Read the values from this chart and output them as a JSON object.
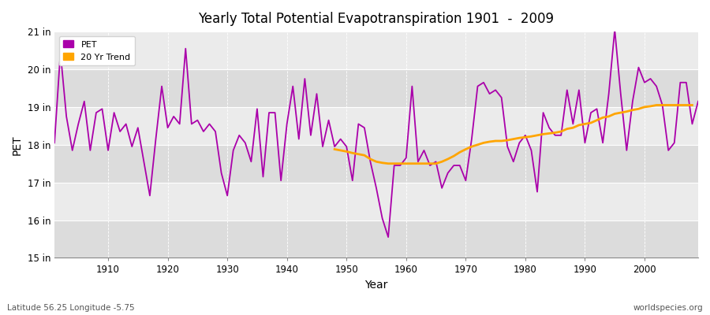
{
  "title": "Yearly Total Potential Evapotranspiration 1901  -  2009",
  "xlabel": "Year",
  "ylabel": "PET",
  "subtitle_left": "Latitude 56.25 Longitude -5.75",
  "subtitle_right": "worldspecies.org",
  "pet_color": "#AA00AA",
  "trend_color": "#FFA500",
  "bg_color": "#FFFFFF",
  "plot_bg_light": "#EBEBEB",
  "plot_bg_dark": "#DCDCDC",
  "ylim": [
    15,
    21
  ],
  "yticks": [
    15,
    16,
    17,
    18,
    19,
    20,
    21
  ],
  "ytick_labels": [
    "15 in",
    "16 in",
    "17 in",
    "18 in",
    "19 in",
    "20 in",
    "21 in"
  ],
  "years": [
    1901,
    1902,
    1903,
    1904,
    1905,
    1906,
    1907,
    1908,
    1909,
    1910,
    1911,
    1912,
    1913,
    1914,
    1915,
    1916,
    1917,
    1918,
    1919,
    1920,
    1921,
    1922,
    1923,
    1924,
    1925,
    1926,
    1927,
    1928,
    1929,
    1930,
    1931,
    1932,
    1933,
    1934,
    1935,
    1936,
    1937,
    1938,
    1939,
    1940,
    1941,
    1942,
    1943,
    1944,
    1945,
    1946,
    1947,
    1948,
    1949,
    1950,
    1951,
    1952,
    1953,
    1954,
    1955,
    1956,
    1957,
    1958,
    1959,
    1960,
    1961,
    1962,
    1963,
    1964,
    1965,
    1966,
    1967,
    1968,
    1969,
    1970,
    1971,
    1972,
    1973,
    1974,
    1975,
    1976,
    1977,
    1978,
    1979,
    1980,
    1981,
    1982,
    1983,
    1984,
    1985,
    1986,
    1987,
    1988,
    1989,
    1990,
    1991,
    1992,
    1993,
    1994,
    1995,
    1996,
    1997,
    1998,
    1999,
    2000,
    2001,
    2002,
    2003,
    2004,
    2005,
    2006,
    2007,
    2008,
    2009
  ],
  "pet_values": [
    18.05,
    20.45,
    18.75,
    17.85,
    18.55,
    19.15,
    17.85,
    18.85,
    18.95,
    17.85,
    18.85,
    18.35,
    18.55,
    17.95,
    18.45,
    17.55,
    16.65,
    18.15,
    19.55,
    18.45,
    18.75,
    18.55,
    20.55,
    18.55,
    18.65,
    18.35,
    18.55,
    18.35,
    17.25,
    16.65,
    17.85,
    18.25,
    18.05,
    17.55,
    18.95,
    17.15,
    18.85,
    18.85,
    17.05,
    18.55,
    19.55,
    18.15,
    19.75,
    18.25,
    19.35,
    17.95,
    18.65,
    17.95,
    18.15,
    17.95,
    17.05,
    18.55,
    18.45,
    17.55,
    16.85,
    16.05,
    15.55,
    17.45,
    17.45,
    17.65,
    19.55,
    17.55,
    17.85,
    17.45,
    17.55,
    16.85,
    17.25,
    17.45,
    17.45,
    17.05,
    18.15,
    19.55,
    19.65,
    19.35,
    19.45,
    19.25,
    17.95,
    17.55,
    18.05,
    18.25,
    17.85,
    16.75,
    18.85,
    18.45,
    18.25,
    18.25,
    19.45,
    18.55,
    19.45,
    18.05,
    18.85,
    18.95,
    18.05,
    19.35,
    21.05,
    19.35,
    17.85,
    19.15,
    20.05,
    19.65,
    19.75,
    19.55,
    19.05,
    17.85,
    18.05,
    19.65,
    19.65,
    18.55,
    19.15
  ],
  "trend_years": [
    1948,
    1949,
    1950,
    1951,
    1952,
    1953,
    1954,
    1955,
    1956,
    1957,
    1958,
    1959,
    1960,
    1961,
    1962,
    1963,
    1964,
    1965,
    1966,
    1967,
    1968,
    1969,
    1970,
    1971,
    1972,
    1973,
    1974,
    1975,
    1976,
    1977,
    1978,
    1979,
    1980,
    1981,
    1982,
    1983,
    1984,
    1985,
    1986,
    1987,
    1988,
    1989,
    1990,
    1991,
    1992,
    1993,
    1994,
    1995,
    1996,
    1997,
    1998,
    1999,
    2000,
    2001,
    2002,
    2003,
    2004,
    2005,
    2006,
    2007,
    2008
  ],
  "trend_values": [
    17.88,
    17.85,
    17.82,
    17.78,
    17.75,
    17.72,
    17.62,
    17.55,
    17.52,
    17.5,
    17.5,
    17.5,
    17.5,
    17.5,
    17.5,
    17.5,
    17.5,
    17.5,
    17.55,
    17.62,
    17.7,
    17.8,
    17.88,
    17.95,
    18.0,
    18.05,
    18.08,
    18.1,
    18.1,
    18.12,
    18.15,
    18.18,
    18.2,
    18.22,
    18.25,
    18.28,
    18.3,
    18.32,
    18.35,
    18.42,
    18.45,
    18.52,
    18.55,
    18.58,
    18.65,
    18.72,
    18.75,
    18.82,
    18.85,
    18.88,
    18.92,
    18.95,
    19.0,
    19.02,
    19.05,
    19.05,
    19.05,
    19.05,
    19.05,
    19.05,
    19.05
  ]
}
